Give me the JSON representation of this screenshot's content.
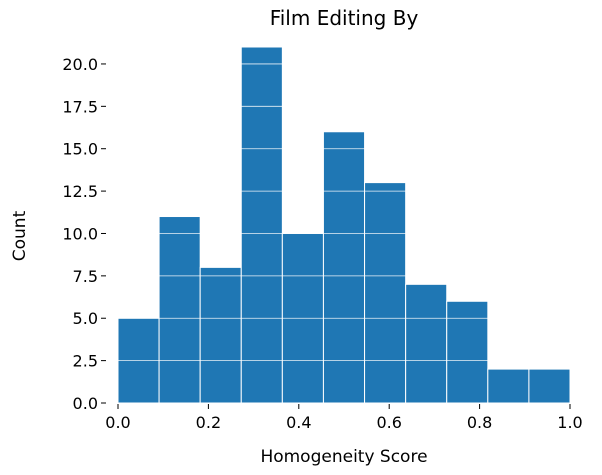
{
  "chart_data": {
    "type": "histogram",
    "title": "Film Editing By",
    "xlabel": "Homogeneity Score",
    "ylabel": "Count",
    "xlim": [
      0.0,
      1.0
    ],
    "ylim": [
      0,
      21
    ],
    "bin_edges": [
      0.0,
      0.0909,
      0.1818,
      0.2727,
      0.3636,
      0.4545,
      0.5455,
      0.6364,
      0.7273,
      0.8182,
      0.9091,
      1.0
    ],
    "values": [
      5,
      11,
      8,
      21,
      10,
      16,
      13,
      7,
      6,
      2,
      2
    ],
    "xticks": [
      0.0,
      0.2,
      0.4,
      0.6,
      0.8,
      1.0
    ],
    "xtick_labels": [
      "0.0",
      "0.2",
      "0.4",
      "0.6",
      "0.8",
      "1.0"
    ],
    "yticks": [
      0.0,
      2.5,
      5.0,
      7.5,
      10.0,
      12.5,
      15.0,
      17.5,
      20.0
    ],
    "ytick_labels": [
      "0.0",
      "2.5",
      "5.0",
      "7.5",
      "10.0",
      "12.5",
      "15.0",
      "17.5",
      "20.0"
    ],
    "grid": true,
    "bar_color": "#1f77b4",
    "grid_color": "#ffffff"
  }
}
